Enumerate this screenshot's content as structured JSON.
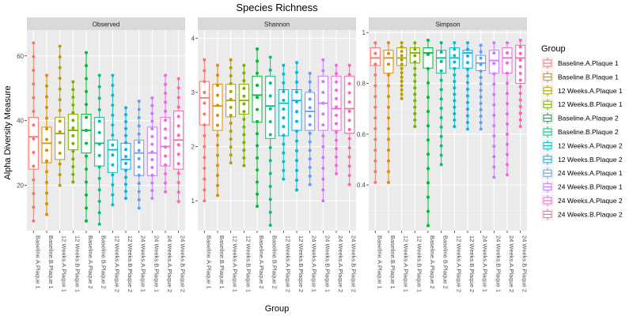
{
  "chart_data": {
    "type": "boxplot",
    "title": "Species Richness",
    "xlabel": "Group",
    "ylabel": "Alpha Diversity Measure",
    "legend_title": "Group",
    "legend_position": "right",
    "grid": true,
    "groups": [
      {
        "name": "Baseline.A.Plaque 1",
        "color": "#F8766D"
      },
      {
        "name": "Baseline.B.Plaque 1",
        "color": "#DE8C00"
      },
      {
        "name": "12 Weeks.A.Plaque 1",
        "color": "#B79F00"
      },
      {
        "name": "12 Weeks.B.Plaque 1",
        "color": "#7CAE00"
      },
      {
        "name": "Baseline.A.Plaque 2",
        "color": "#00BA38"
      },
      {
        "name": "Baseline.B.Plaque 2",
        "color": "#00C08B"
      },
      {
        "name": "12 Weeks.A.Plaque 2",
        "color": "#00BFC4"
      },
      {
        "name": "12 Weeks.B.Plaque 2",
        "color": "#00B4F0"
      },
      {
        "name": "24 Weeks.A.Plaque 1",
        "color": "#619CFF"
      },
      {
        "name": "24 Weeks.B.Plaque 1",
        "color": "#C77CFF"
      },
      {
        "name": "24 Weeks.A.Plaque 2",
        "color": "#F564E3"
      },
      {
        "name": "24 Weeks.B.Plaque 2",
        "color": "#FF64B0"
      }
    ],
    "panels": [
      {
        "name": "Observed",
        "ylim": [
          6,
          68
        ],
        "yticks": [
          20,
          40,
          60
        ],
        "boxes": [
          {
            "min": 9,
            "q1": 25,
            "median": 35,
            "q3": 41,
            "max": 64
          },
          {
            "min": 11,
            "q1": 27,
            "median": 33,
            "q3": 38,
            "max": 54
          },
          {
            "min": 20,
            "q1": 28,
            "median": 36,
            "q3": 41,
            "max": 63
          },
          {
            "min": 21,
            "q1": 31,
            "median": 37,
            "q3": 42,
            "max": 52
          },
          {
            "min": 9,
            "q1": 30,
            "median": 37,
            "q3": 42,
            "max": 61
          },
          {
            "min": 8,
            "q1": 26,
            "median": 33,
            "q3": 41,
            "max": 54
          },
          {
            "min": 14,
            "q1": 24,
            "median": 31,
            "q3": 34,
            "max": 54
          },
          {
            "min": 16,
            "q1": 25,
            "median": 28,
            "q3": 33,
            "max": 44
          },
          {
            "min": 13,
            "q1": 23,
            "median": 30,
            "q3": 34,
            "max": 46
          },
          {
            "min": 16,
            "q1": 23,
            "median": 30,
            "q3": 38,
            "max": 47
          },
          {
            "min": 18,
            "q1": 26,
            "median": 32,
            "q3": 41,
            "max": 54
          },
          {
            "min": 15,
            "q1": 25,
            "median": 34,
            "q3": 43,
            "max": 53
          }
        ]
      },
      {
        "name": "Shannon",
        "ylim": [
          0.45,
          4.15
        ],
        "yticks": [
          1,
          2,
          3,
          4
        ],
        "boxes": [
          {
            "min": 1.0,
            "q1": 2.4,
            "median": 2.9,
            "q3": 3.2,
            "max": 3.6
          },
          {
            "min": 1.1,
            "q1": 2.3,
            "median": 2.75,
            "q3": 3.15,
            "max": 3.5
          },
          {
            "min": 1.7,
            "q1": 2.55,
            "median": 2.85,
            "q3": 3.15,
            "max": 3.6
          },
          {
            "min": 1.65,
            "q1": 2.6,
            "median": 2.85,
            "q3": 3.15,
            "max": 3.5
          },
          {
            "min": 0.9,
            "q1": 2.45,
            "median": 2.95,
            "q3": 3.3,
            "max": 3.8
          },
          {
            "min": 0.55,
            "q1": 2.15,
            "median": 2.75,
            "q3": 3.3,
            "max": 3.65
          },
          {
            "min": 1.4,
            "q1": 2.2,
            "median": 2.8,
            "q3": 3.05,
            "max": 3.5
          },
          {
            "min": 1.2,
            "q1": 2.3,
            "median": 2.85,
            "q3": 3.05,
            "max": 3.55
          },
          {
            "min": 1.3,
            "q1": 2.3,
            "median": 2.65,
            "q3": 3.0,
            "max": 3.35
          },
          {
            "min": 1.0,
            "q1": 2.3,
            "median": 2.8,
            "q3": 3.3,
            "max": 3.6
          },
          {
            "min": 1.5,
            "q1": 2.3,
            "median": 2.7,
            "q3": 3.3,
            "max": 3.5
          },
          {
            "min": 1.3,
            "q1": 2.25,
            "median": 2.7,
            "q3": 3.3,
            "max": 3.5
          }
        ]
      },
      {
        "name": "Simpson",
        "ylim": [
          0.22,
          1.01
        ],
        "yticks": [
          0.4,
          0.6,
          0.8,
          1.0
        ],
        "boxes": [
          {
            "min": 0.41,
            "q1": 0.87,
            "median": 0.9,
            "q3": 0.94,
            "max": 0.96
          },
          {
            "min": 0.41,
            "q1": 0.84,
            "median": 0.9,
            "q3": 0.93,
            "max": 0.96
          },
          {
            "min": 0.74,
            "q1": 0.87,
            "median": 0.9,
            "q3": 0.94,
            "max": 0.96
          },
          {
            "min": 0.63,
            "q1": 0.88,
            "median": 0.92,
            "q3": 0.94,
            "max": 0.96
          },
          {
            "min": 0.24,
            "q1": 0.86,
            "median": 0.92,
            "q3": 0.94,
            "max": 0.97
          },
          {
            "min": 0.48,
            "q1": 0.84,
            "median": 0.9,
            "q3": 0.93,
            "max": 0.96
          },
          {
            "min": 0.63,
            "q1": 0.86,
            "median": 0.9,
            "q3": 0.94,
            "max": 0.96
          },
          {
            "min": 0.62,
            "q1": 0.86,
            "median": 0.92,
            "q3": 0.93,
            "max": 0.96
          },
          {
            "min": 0.62,
            "q1": 0.85,
            "median": 0.88,
            "q3": 0.91,
            "max": 0.95
          },
          {
            "min": 0.43,
            "q1": 0.84,
            "median": 0.89,
            "q3": 0.93,
            "max": 0.96
          },
          {
            "min": 0.44,
            "q1": 0.84,
            "median": 0.9,
            "q3": 0.94,
            "max": 0.96
          },
          {
            "min": 0.63,
            "q1": 0.8,
            "median": 0.9,
            "q3": 0.95,
            "max": 0.97
          }
        ]
      }
    ]
  }
}
